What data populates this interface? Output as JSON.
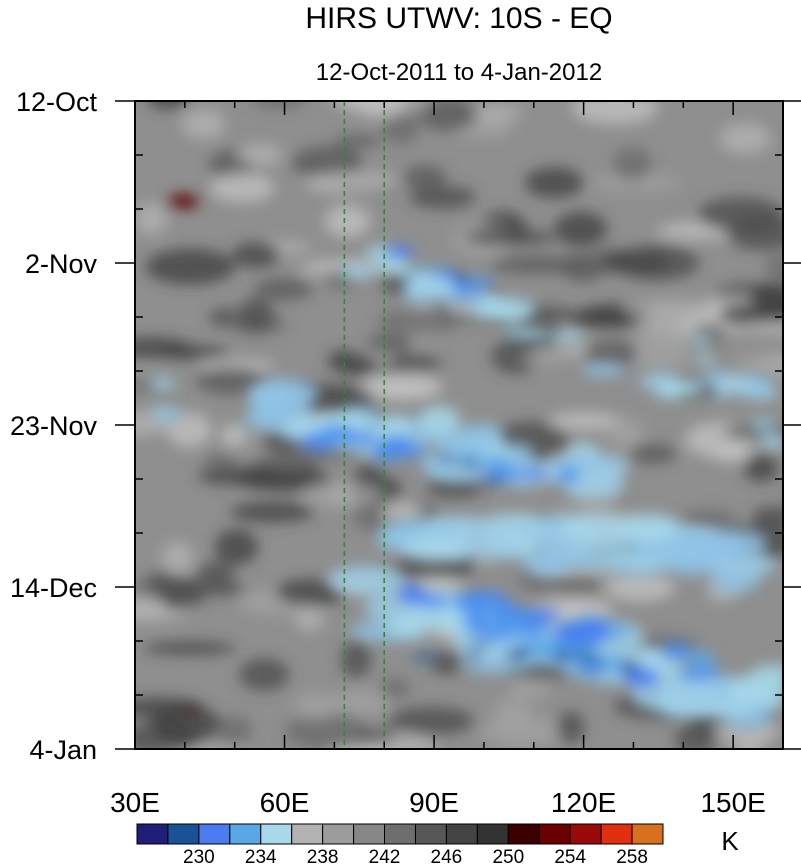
{
  "chart_data": {
    "type": "heatmap",
    "title": "HIRS UTWV: 10S - EQ",
    "subtitle": "12-Oct-2011 to 4-Jan-2012",
    "xlabel": "",
    "ylabel": "",
    "x_range": [
      "30E",
      "160E"
    ],
    "x_ticks": [
      "30E",
      "60E",
      "90E",
      "120E",
      "150E"
    ],
    "y_range": [
      "12-Oct",
      "4-Jan"
    ],
    "y_ticks": [
      "12-Oct",
      "2-Nov",
      "23-Nov",
      "14-Dec",
      "4-Jan"
    ],
    "y_direction": "time increases downward",
    "reference_lines": [
      {
        "lon": "72E",
        "style": "dashed",
        "color": "#2e8b2e"
      },
      {
        "lon": "80E",
        "style": "dashed",
        "color": "#2e8b2e"
      }
    ],
    "colorbar": {
      "units": "K",
      "labels": [
        "230",
        "234",
        "238",
        "242",
        "246",
        "250",
        "254",
        "258"
      ],
      "colors": [
        "#1f1f7a",
        "#1a5296",
        "#4a7cf0",
        "#5aa7e6",
        "#a8d8ea",
        "#b3b3b3",
        "#9c9c9c",
        "#878787",
        "#6e6e6e",
        "#575757",
        "#444444",
        "#333333",
        "#3d0000",
        "#6b0000",
        "#9a0a0a",
        "#e03010",
        "#d9701e"
      ]
    }
  }
}
